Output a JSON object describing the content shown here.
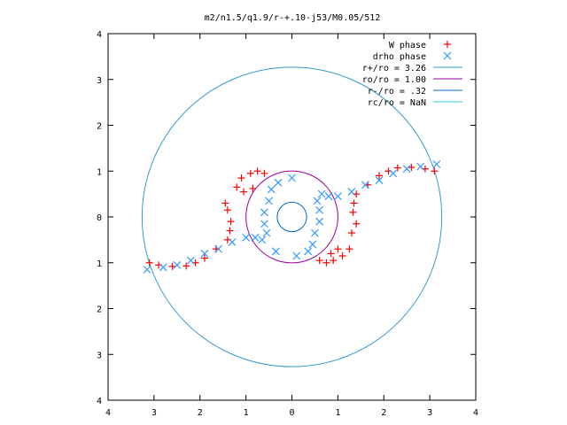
{
  "chart_data": {
    "type": "scatter",
    "title": "m2/n1.5/q1.9/r-+.10-j53/M0.05/512",
    "xlabel": "",
    "ylabel": "",
    "xlim": [
      -4,
      4
    ],
    "ylim": [
      -4,
      4
    ],
    "x_ticks": [
      -4,
      -3,
      -2,
      -1,
      0,
      1,
      2,
      3,
      4
    ],
    "y_ticks": [
      -4,
      -3,
      -2,
      -1,
      0,
      1,
      2,
      3,
      4
    ],
    "x_tick_labels": [
      "4",
      "3",
      "2",
      "1",
      "0",
      "1",
      "2",
      "3",
      "4"
    ],
    "y_tick_labels": [
      "4",
      "3",
      "2",
      "1",
      "0",
      "1",
      "2",
      "3",
      "4"
    ],
    "grid": false,
    "legend_position": "top-right",
    "series": [
      {
        "name": "W phase",
        "marker": "plus",
        "color": "#ff0000",
        "points": [
          [
            -3.1,
            -1.0
          ],
          [
            -2.9,
            -1.05
          ],
          [
            -2.6,
            -1.08
          ],
          [
            -2.3,
            -1.07
          ],
          [
            -2.1,
            -1.0
          ],
          [
            -1.9,
            -0.9
          ],
          [
            -1.65,
            -0.7
          ],
          [
            -1.4,
            -0.5
          ],
          [
            -1.35,
            -0.3
          ],
          [
            -1.33,
            -0.1
          ],
          [
            -1.4,
            0.15
          ],
          [
            -1.45,
            0.3
          ],
          [
            -1.2,
            0.65
          ],
          [
            -1.1,
            0.85
          ],
          [
            -0.9,
            0.95
          ],
          [
            -0.75,
            1.0
          ],
          [
            -0.6,
            0.95
          ],
          [
            3.1,
            1.0
          ],
          [
            2.9,
            1.05
          ],
          [
            2.6,
            1.08
          ],
          [
            2.3,
            1.07
          ],
          [
            2.1,
            1.0
          ],
          [
            1.9,
            0.9
          ],
          [
            1.65,
            0.7
          ],
          [
            1.4,
            0.5
          ],
          [
            1.35,
            0.3
          ],
          [
            1.33,
            0.1
          ],
          [
            1.4,
            -0.15
          ],
          [
            1.3,
            -0.35
          ],
          [
            1.25,
            -0.7
          ],
          [
            1.1,
            -0.85
          ],
          [
            0.9,
            -0.95
          ],
          [
            0.75,
            -1.0
          ],
          [
            0.6,
            -0.95
          ],
          [
            -1.05,
            0.55
          ],
          [
            -0.85,
            0.62
          ],
          [
            1.0,
            -0.7
          ],
          [
            0.85,
            -0.8
          ]
        ]
      },
      {
        "name": "drho phase",
        "marker": "cross",
        "color": "#3399ff",
        "points": [
          [
            -3.15,
            -1.15
          ],
          [
            -2.8,
            -1.1
          ],
          [
            -2.5,
            -1.05
          ],
          [
            -2.2,
            -0.95
          ],
          [
            -1.9,
            -0.8
          ],
          [
            -1.6,
            -0.7
          ],
          [
            -1.3,
            -0.55
          ],
          [
            -1.0,
            -0.45
          ],
          [
            -0.8,
            -0.45
          ],
          [
            -0.65,
            -0.5
          ],
          [
            -0.55,
            -0.35
          ],
          [
            -0.6,
            -0.15
          ],
          [
            -0.6,
            0.1
          ],
          [
            -0.5,
            0.35
          ],
          [
            -0.45,
            0.6
          ],
          [
            3.15,
            1.15
          ],
          [
            2.8,
            1.1
          ],
          [
            2.5,
            1.05
          ],
          [
            2.2,
            0.95
          ],
          [
            1.9,
            0.8
          ],
          [
            1.6,
            0.7
          ],
          [
            1.3,
            0.55
          ],
          [
            1.0,
            0.45
          ],
          [
            0.8,
            0.45
          ],
          [
            0.65,
            0.5
          ],
          [
            0.55,
            0.35
          ],
          [
            0.6,
            0.15
          ],
          [
            0.6,
            -0.1
          ],
          [
            0.5,
            -0.35
          ],
          [
            0.45,
            -0.6
          ],
          [
            -0.35,
            -0.75
          ],
          [
            0.1,
            -0.85
          ],
          [
            0.35,
            -0.75
          ],
          [
            -0.3,
            0.75
          ],
          [
            0.0,
            0.85
          ]
        ]
      }
    ],
    "circles": [
      {
        "name": "r+/ro = 3.26",
        "radius": 3.26,
        "color": "#3399cc"
      },
      {
        "name": "ro/ro = 1.00",
        "radius": 1.0,
        "color": "#990099"
      },
      {
        "name": "r-/ro = .32",
        "radius": 0.32,
        "color": "#0066cc"
      },
      {
        "name": "rc/ro = NaN",
        "radius": null,
        "color": "#33cccc"
      }
    ]
  }
}
